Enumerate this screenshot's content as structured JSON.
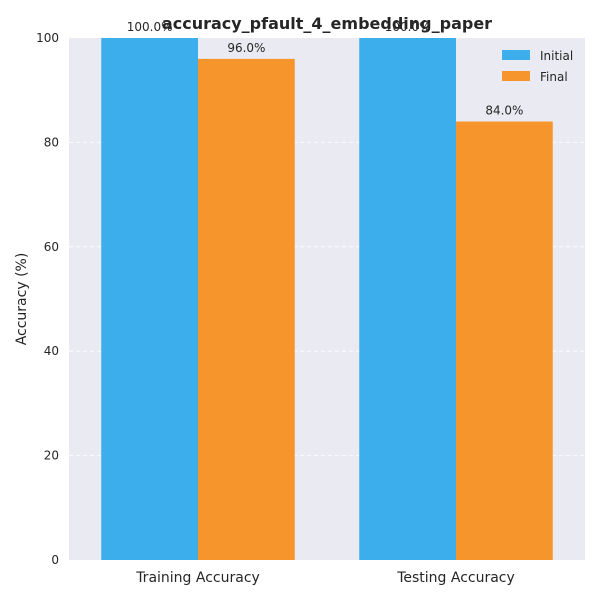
{
  "chart_data": {
    "type": "bar",
    "title": "accuracy_pfault_4_embedding_paper",
    "xlabel": "",
    "ylabel": "Accuracy (%)",
    "categories": [
      "Training Accuracy",
      "Testing Accuracy"
    ],
    "series": [
      {
        "name": "Initial",
        "values": [
          100.0,
          100.0
        ],
        "color": "#3daeec",
        "labels": [
          "100.0%",
          "100.0%"
        ]
      },
      {
        "name": "Final",
        "values": [
          96.0,
          84.0
        ],
        "color": "#f7952d",
        "labels": [
          "96.0%",
          "84.0%"
        ]
      }
    ],
    "ylim": [
      0,
      100
    ],
    "yticks": [
      0,
      20,
      40,
      60,
      80,
      100
    ],
    "ytick_labels": [
      "0",
      "20",
      "40",
      "60",
      "80",
      "100"
    ],
    "grid": true,
    "legend_position": "top-right",
    "background": "#eaeaf2"
  }
}
